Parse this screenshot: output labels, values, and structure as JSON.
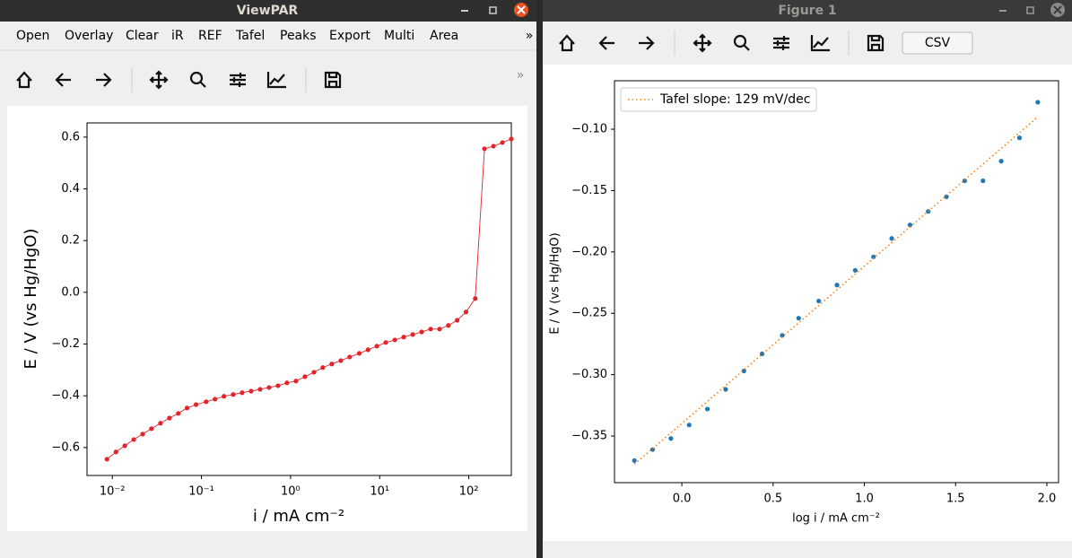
{
  "left_window": {
    "title": "ViewPAR",
    "menu": [
      "Open",
      "Overlay",
      "Clear",
      "iR",
      "REF",
      "Tafel",
      "Peaks",
      "Export",
      "Multi",
      "Area"
    ],
    "menu_overflow": "»",
    "toolbar_overflow": "»"
  },
  "right_window": {
    "title": "Figure 1",
    "button": "CSV"
  },
  "chart_data": [
    {
      "type": "line",
      "xscale": "log",
      "x_label": "i / mA cm⁻²",
      "y_label": "E / V (vs Hg/HgO)",
      "xlim": [
        0.0052,
        300
      ],
      "ylim": [
        -0.708,
        0.655
      ],
      "xticks": [
        {
          "value": 0.01,
          "label": "10⁻²"
        },
        {
          "value": 0.1,
          "label": "10⁻¹"
        },
        {
          "value": 1,
          "label": "10⁰"
        },
        {
          "value": 10,
          "label": "10¹"
        },
        {
          "value": 100,
          "label": "10²"
        }
      ],
      "yticks": [
        {
          "value": -0.6,
          "label": "−0.6"
        },
        {
          "value": -0.4,
          "label": "−0.4"
        },
        {
          "value": -0.2,
          "label": "−0.2"
        },
        {
          "value": 0,
          "label": "0.0"
        },
        0.2,
        0.4,
        0.6
      ],
      "series": [
        {
          "color": "#e3242b",
          "marker": true,
          "linestyle": "solid",
          "x": [
            0.0087,
            0.011,
            0.0138,
            0.0174,
            0.0219,
            0.0275,
            0.0347,
            0.0437,
            0.055,
            0.069,
            0.087,
            0.113,
            0.142,
            0.179,
            0.227,
            0.286,
            0.361,
            0.455,
            0.574,
            0.723,
            0.911,
            1.15,
            1.45,
            1.83,
            2.3,
            2.9,
            3.66,
            4.6,
            5.9,
            7.4,
            9.3,
            11.7,
            14.8,
            18.6,
            23.5,
            29.6,
            37.3,
            47,
            59,
            74,
            93,
            118,
            150,
            189,
            238,
            300
          ],
          "values": [
            -0.645,
            -0.617,
            -0.593,
            -0.569,
            -0.548,
            -0.527,
            -0.506,
            -0.486,
            -0.468,
            -0.447,
            -0.434,
            -0.423,
            -0.413,
            -0.402,
            -0.395,
            -0.388,
            -0.382,
            -0.375,
            -0.368,
            -0.361,
            -0.35,
            -0.343,
            -0.326,
            -0.309,
            -0.291,
            -0.277,
            -0.264,
            -0.25,
            -0.236,
            -0.222,
            -0.208,
            -0.194,
            -0.184,
            -0.173,
            -0.163,
            -0.153,
            -0.142,
            -0.142,
            -0.128,
            -0.108,
            -0.076,
            -0.024,
            0.555,
            0.565,
            0.579,
            0.593
          ]
        }
      ]
    },
    {
      "type": "scatter",
      "legend": "upper left",
      "x_label": "log i / mA cm⁻²",
      "y_label": "E / V (vs Hg/HgO)",
      "xlim": [
        -0.369,
        2.064
      ],
      "ylim": [
        -0.388,
        -0.0605
      ],
      "xticks": [
        {
          "value": 0,
          "label": "0.0"
        },
        0.5,
        {
          "value": 1,
          "label": "1.0"
        },
        1.5,
        {
          "value": 2,
          "label": "2.0"
        }
      ],
      "yticks": [
        {
          "value": -0.35,
          "label": "−0.35"
        },
        {
          "value": -0.3,
          "label": "−0.30"
        },
        {
          "value": -0.25,
          "label": "−0.25"
        },
        {
          "value": -0.2,
          "label": "−0.20"
        },
        {
          "value": -0.15,
          "label": "−0.15"
        },
        {
          "value": -0.1,
          "label": "−0.10"
        }
      ],
      "series": [
        {
          "color": "#1f77b4",
          "marker": true,
          "linestyle": "none",
          "x": [
            -0.26,
            -0.16,
            -0.06,
            0.04,
            0.14,
            0.24,
            0.34,
            0.44,
            0.55,
            0.64,
            0.75,
            0.85,
            0.95,
            1.05,
            1.15,
            1.25,
            1.35,
            1.45,
            1.55,
            1.65,
            1.75,
            1.85,
            1.95
          ],
          "values": [
            -0.37,
            -0.361,
            -0.352,
            -0.341,
            -0.328,
            -0.312,
            -0.297,
            -0.283,
            -0.268,
            -0.254,
            -0.24,
            -0.227,
            -0.215,
            -0.204,
            -0.189,
            -0.178,
            -0.167,
            -0.155,
            -0.142,
            -0.142,
            -0.126,
            -0.107,
            -0.078
          ]
        },
        {
          "name": "Tafel slope: 129 mV/dec",
          "color": "#ff7f0e",
          "marker": false,
          "linestyle": "dotted",
          "x": [
            -0.26,
            1.95
          ],
          "values": [
            -0.373,
            -0.09
          ]
        }
      ]
    }
  ]
}
